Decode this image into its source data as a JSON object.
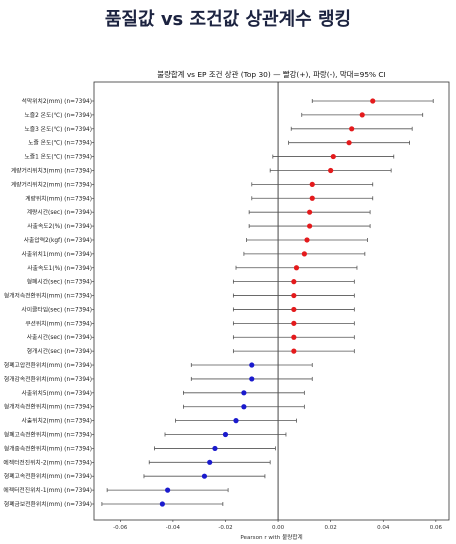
{
  "page_title": "품질값 vs 조건값 상관계수 랭킹",
  "chart_data": {
    "type": "scatter",
    "title": "불량합계 vs EP 조건 상관 (Top 30) — 빨강(+), 파랑(-), 막대=95% CI",
    "xlabel": "Pearson r with 불량합계",
    "ylabel": "",
    "xlim": [
      -0.07,
      0.065
    ],
    "xticks": [
      "-0.06",
      "-0.04",
      "-0.02",
      "0.00",
      "0.02",
      "0.04",
      "0.06"
    ],
    "xtick_values": [
      -0.06,
      -0.04,
      -0.02,
      0.0,
      0.02,
      0.04,
      0.06
    ],
    "grid": false,
    "reference_line": 0,
    "colors": {
      "positive": "#e41a1c",
      "negative": "#1a1acd",
      "ci": "#555555"
    },
    "labels": [
      "석막위치2(mm) (n=7394)",
      "노즐2 온도(℃) (n=7394)",
      "노즐3 온도(℃) (n=7394)",
      "노즐 온도(℃) (n=7394)",
      "노즐1 온도(℃) (n=7394)",
      "계량거리위치3(mm) (n=7394)",
      "계량거리위치2(mm) (n=7394)",
      "계량위치(mm) (n=7394)",
      "계량시간(sec) (n=7394)",
      "사출속도2(%) (n=7394)",
      "사출압력2(kgf) (n=7394)",
      "사출위치1(mm) (n=7394)",
      "사출속도1(%) (n=7394)",
      "형폐시간(sec) (n=7394)",
      "형개저속전환위치(mm) (n=7394)",
      "사이클타임(sec) (n=7394)",
      "쿠션위치(mm) (n=7394)",
      "사출시간(sec) (n=7394)",
      "형개시간(sec) (n=7394)",
      "형폐고압전환위치(mm) (n=7394)",
      "형개감속전환위치(mm) (n=7394)",
      "사출위치5(mm) (n=7394)",
      "형개저속전환위치(mm) (n=7394)",
      "사출위치2(mm) (n=7394)",
      "형폐고속전환위치(mm) (n=7394)",
      "형개중속전환위치(mm) (n=7394)",
      "에젝터전진위치-2(mm) (n=7394)",
      "형폐고속전환위치(mm) (n=7394)",
      "에젝터전진위치-1(mm) (n=7394)",
      "형폐금보전환위치(mm) (n=7394)"
    ],
    "r": [
      0.036,
      0.032,
      0.028,
      0.027,
      0.021,
      0.02,
      0.013,
      0.013,
      0.012,
      0.012,
      0.011,
      0.01,
      0.007,
      0.006,
      0.006,
      0.006,
      0.006,
      0.006,
      0.006,
      -0.01,
      -0.01,
      -0.013,
      -0.013,
      -0.016,
      -0.02,
      -0.024,
      -0.026,
      -0.028,
      -0.042,
      -0.044
    ],
    "ci_low": [
      0.013,
      0.009,
      0.005,
      0.004,
      -0.002,
      -0.003,
      -0.01,
      -0.01,
      -0.011,
      -0.011,
      -0.012,
      -0.013,
      -0.016,
      -0.017,
      -0.017,
      -0.017,
      -0.017,
      -0.017,
      -0.017,
      -0.033,
      -0.033,
      -0.036,
      -0.036,
      -0.039,
      -0.043,
      -0.047,
      -0.049,
      -0.051,
      -0.065,
      -0.067
    ],
    "ci_high": [
      0.059,
      0.055,
      0.051,
      0.05,
      0.044,
      0.043,
      0.036,
      0.036,
      0.035,
      0.035,
      0.034,
      0.033,
      0.03,
      0.029,
      0.029,
      0.029,
      0.029,
      0.029,
      0.029,
      0.013,
      0.013,
      0.01,
      0.01,
      0.007,
      0.003,
      -0.001,
      -0.003,
      -0.005,
      -0.019,
      -0.021
    ]
  }
}
